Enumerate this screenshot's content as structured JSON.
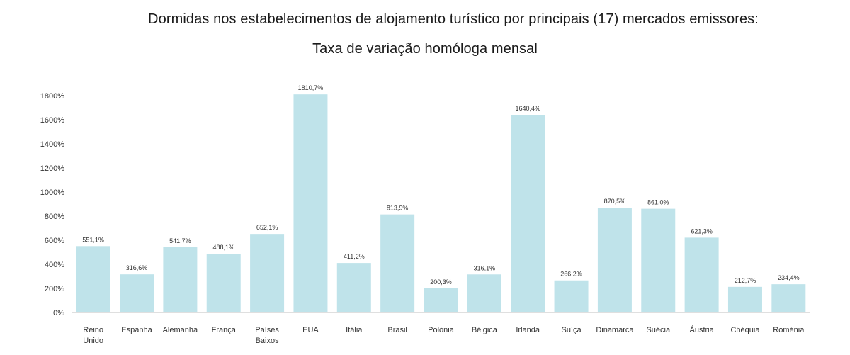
{
  "chart_data": {
    "type": "bar",
    "title": "Dormidas nos estabelecimentos de alojamento turístico por principais (17) mercados emissores:",
    "subtitle": "Taxa de variação homóloga mensal",
    "categories": [
      "Reino Unido",
      "Espanha",
      "Alemanha",
      "França",
      "Países Baixos",
      "EUA",
      "Itália",
      "Brasil",
      "Polónia",
      "Bélgica",
      "Irlanda",
      "Suíça",
      "Dinamarca",
      "Suécia",
      "Áustria",
      "Chéquia",
      "Roménia"
    ],
    "category_lines": [
      [
        "Reino",
        "Unido"
      ],
      [
        "Espanha"
      ],
      [
        "Alemanha"
      ],
      [
        "França"
      ],
      [
        "Países",
        "Baixos"
      ],
      [
        "EUA"
      ],
      [
        "Itália"
      ],
      [
        "Brasil"
      ],
      [
        "Polónia"
      ],
      [
        "Bélgica"
      ],
      [
        "Irlanda"
      ],
      [
        "Suíça"
      ],
      [
        "Dinamarca"
      ],
      [
        "Suécia"
      ],
      [
        "Áustria"
      ],
      [
        "Chéquia"
      ],
      [
        "Roménia"
      ]
    ],
    "values": [
      551.1,
      316.6,
      541.7,
      488.1,
      652.1,
      1810.7,
      411.2,
      813.9,
      200.3,
      316.1,
      1640.4,
      266.2,
      870.5,
      861.0,
      621.3,
      212.7,
      234.4
    ],
    "data_labels": [
      "551,1%",
      "316,6%",
      "541,7%",
      "488,1%",
      "652,1%",
      "1810,7%",
      "411,2%",
      "813,9%",
      "200,3%",
      "316,1%",
      "1640,4%",
      "266,2%",
      "870,5%",
      "861,0%",
      "621,3%",
      "212,7%",
      "234,4%"
    ],
    "ylim": [
      0,
      1800
    ],
    "yticks": [
      0,
      200,
      400,
      600,
      800,
      1000,
      1200,
      1400,
      1600,
      1800
    ],
    "ytick_labels": [
      "0%",
      "200%",
      "400%",
      "600%",
      "800%",
      "1000%",
      "1200%",
      "1400%",
      "1600%",
      "1800%"
    ],
    "bar_color": "#bfe3ea",
    "grid": false,
    "legend": "none"
  }
}
